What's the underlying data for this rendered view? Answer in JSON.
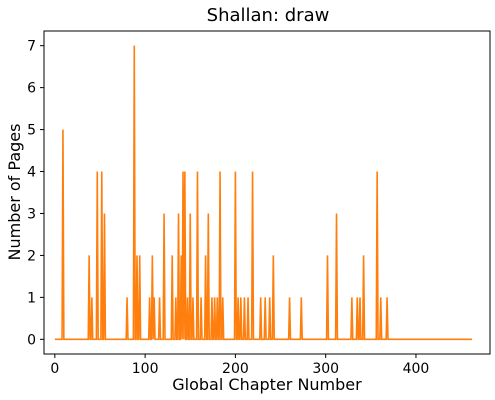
{
  "chart_data": {
    "type": "line",
    "title": "Shallan: draw",
    "xlabel": "Global Chapter Number",
    "ylabel": "Number of Pages",
    "xlim": [
      -12,
      482
    ],
    "ylim": [
      -0.35,
      7.35
    ],
    "xticks": [
      0,
      100,
      200,
      300,
      400
    ],
    "yticks": [
      0,
      1,
      2,
      3,
      4,
      5,
      6,
      7
    ],
    "grid": false,
    "line_color": "#ff7f0e",
    "series": [
      {
        "x_start": 0,
        "x_end": 462,
        "points": [
          [
            9,
            5
          ],
          [
            38,
            2
          ],
          [
            41,
            1
          ],
          [
            47,
            4
          ],
          [
            52,
            4
          ],
          [
            55,
            3
          ],
          [
            80,
            1
          ],
          [
            88,
            7
          ],
          [
            91,
            2
          ],
          [
            94,
            2
          ],
          [
            105,
            1
          ],
          [
            108,
            2
          ],
          [
            110,
            1
          ],
          [
            116,
            1
          ],
          [
            121,
            3
          ],
          [
            130,
            2
          ],
          [
            134,
            1
          ],
          [
            137,
            3
          ],
          [
            140,
            2
          ],
          [
            142,
            4
          ],
          [
            144,
            4
          ],
          [
            147,
            1
          ],
          [
            150,
            3
          ],
          [
            153,
            1
          ],
          [
            158,
            4
          ],
          [
            162,
            1
          ],
          [
            167,
            2
          ],
          [
            170,
            3
          ],
          [
            174,
            1
          ],
          [
            177,
            1
          ],
          [
            180,
            1
          ],
          [
            183,
            4
          ],
          [
            186,
            1
          ],
          [
            200,
            4
          ],
          [
            203,
            1
          ],
          [
            206,
            1
          ],
          [
            210,
            1
          ],
          [
            214,
            1
          ],
          [
            219,
            4
          ],
          [
            228,
            1
          ],
          [
            233,
            1
          ],
          [
            238,
            1
          ],
          [
            242,
            2
          ],
          [
            260,
            1
          ],
          [
            273,
            1
          ],
          [
            302,
            2
          ],
          [
            312,
            3
          ],
          [
            329,
            1
          ],
          [
            335,
            1
          ],
          [
            338,
            1
          ],
          [
            342,
            2
          ],
          [
            357,
            4
          ],
          [
            361,
            1
          ],
          [
            368,
            1
          ]
        ]
      }
    ]
  }
}
